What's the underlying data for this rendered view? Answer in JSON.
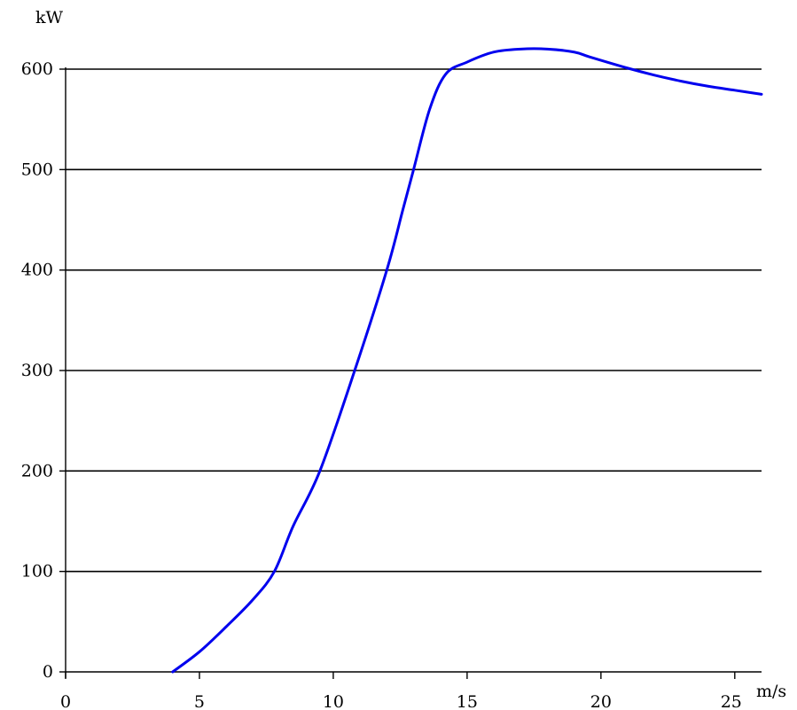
{
  "chart_data": {
    "type": "line",
    "xlabel": "m/s",
    "ylabel": "kW",
    "xlim": [
      0,
      26
    ],
    "ylim": [
      0,
      600
    ],
    "x_ticks": [
      0,
      5,
      10,
      15,
      20,
      25
    ],
    "y_ticks": [
      0,
      100,
      200,
      300,
      400,
      500,
      600
    ],
    "grid": "horizontal",
    "line_color": "#0000ee",
    "grid_color": "#000000",
    "series": [
      {
        "x": [
          4,
          5,
          6,
          7,
          7.8,
          8.5,
          9.5,
          10.8,
          12,
          12.6,
          13,
          13.6,
          14.2,
          15,
          16,
          17,
          18,
          19,
          19.6,
          21,
          22,
          23,
          24,
          25,
          26
        ],
        "y": [
          0,
          20,
          45,
          72,
          100,
          145,
          200,
          300,
          400,
          460,
          500,
          560,
          595,
          607,
          617,
          620,
          620,
          617,
          612,
          601,
          594,
          588,
          583,
          579,
          575
        ]
      }
    ]
  }
}
